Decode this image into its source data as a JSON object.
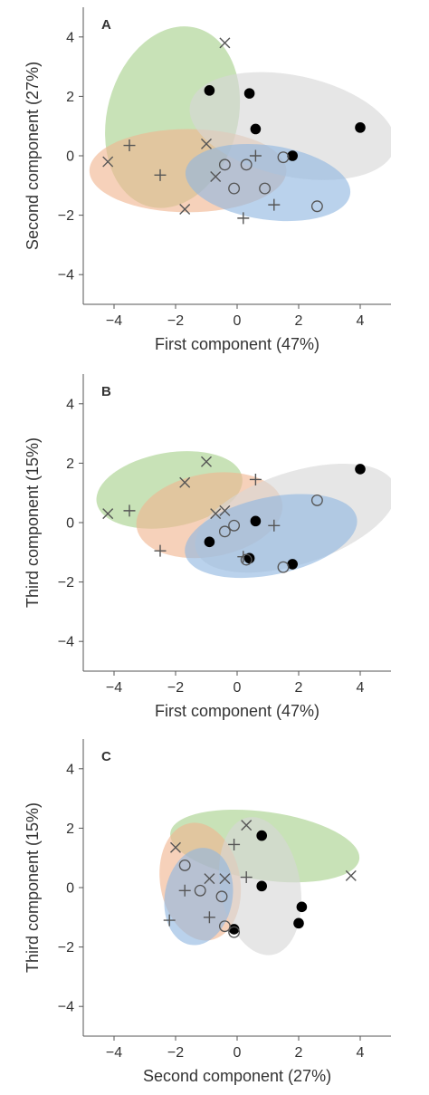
{
  "figure": {
    "colors": {
      "group_green": "#a7d08a",
      "group_orange": "#f0b58f",
      "group_gray": "#d6d6d6",
      "group_blue": "#8fb6e1",
      "axis": "#555555",
      "marker": "#555555",
      "filled_marker": "#000000"
    }
  },
  "chart_data": [
    {
      "type": "scatter",
      "panel_label": "A",
      "xlabel": "First component (47%)",
      "ylabel": "Second component (27%)",
      "xlim": [
        -5,
        5
      ],
      "ylim": [
        -5,
        5
      ],
      "xticks": [
        -4,
        -2,
        0,
        2,
        4
      ],
      "yticks": [
        -4,
        -2,
        0,
        2,
        4
      ],
      "groups": [
        {
          "marker": "x",
          "color": "#a7d08a",
          "ellipse": {
            "cx": -2.1,
            "cy": 1.3,
            "rx": 3.0,
            "ry": 2.2,
            "angle": 75
          },
          "points": [
            [
              -4.2,
              -0.2
            ],
            [
              -1.0,
              0.4
            ],
            [
              -1.7,
              -1.8
            ],
            [
              -0.7,
              -0.7
            ],
            [
              -0.4,
              3.8
            ]
          ]
        },
        {
          "marker": "+",
          "color": "#f0b58f",
          "ellipse": {
            "cx": -1.6,
            "cy": -0.5,
            "rx": 3.2,
            "ry": 1.4,
            "angle": 0
          },
          "points": [
            [
              -3.5,
              0.35
            ],
            [
              -2.5,
              -0.65
            ],
            [
              0.2,
              -2.1
            ],
            [
              1.2,
              -1.65
            ],
            [
              0.6,
              0.0
            ]
          ]
        },
        {
          "marker": "filled",
          "color": "#d6d6d6",
          "ellipse": {
            "cx": 1.8,
            "cy": 1.0,
            "rx": 3.4,
            "ry": 1.7,
            "angle": -12
          },
          "points": [
            [
              -0.9,
              2.2
            ],
            [
              0.4,
              2.1
            ],
            [
              0.6,
              0.9
            ],
            [
              1.8,
              0.0
            ],
            [
              4.0,
              0.95
            ]
          ]
        },
        {
          "marker": "o",
          "color": "#8fb6e1",
          "ellipse": {
            "cx": 1.0,
            "cy": -0.9,
            "rx": 2.7,
            "ry": 1.25,
            "angle": -8
          },
          "points": [
            [
              -0.4,
              -0.3
            ],
            [
              -0.1,
              -1.1
            ],
            [
              0.3,
              -0.3
            ],
            [
              0.9,
              -1.1
            ],
            [
              1.5,
              -0.05
            ],
            [
              2.6,
              -1.7
            ]
          ]
        }
      ]
    },
    {
      "type": "scatter",
      "panel_label": "B",
      "xlabel": "First component (47%)",
      "ylabel": "Third component (15%)",
      "xlim": [
        -5,
        5
      ],
      "ylim": [
        -5,
        5
      ],
      "xticks": [
        -4,
        -2,
        0,
        2,
        4
      ],
      "yticks": [
        -4,
        -2,
        0,
        2,
        4
      ],
      "groups": [
        {
          "marker": "x",
          "color": "#a7d08a",
          "ellipse": {
            "cx": -2.2,
            "cy": 1.1,
            "rx": 2.4,
            "ry": 1.25,
            "angle": 10
          },
          "points": [
            [
              -4.2,
              0.3
            ],
            [
              -1.0,
              2.05
            ],
            [
              -1.7,
              1.35
            ],
            [
              -0.7,
              0.3
            ],
            [
              -0.4,
              0.4
            ]
          ]
        },
        {
          "marker": "+",
          "color": "#f0b58f",
          "ellipse": {
            "cx": -0.9,
            "cy": 0.25,
            "rx": 2.4,
            "ry": 1.4,
            "angle": 10
          },
          "points": [
            [
              -3.5,
              0.4
            ],
            [
              -2.5,
              -0.95
            ],
            [
              0.2,
              -1.15
            ],
            [
              1.2,
              -0.1
            ],
            [
              0.6,
              1.45
            ]
          ]
        },
        {
          "marker": "filled",
          "color": "#d6d6d6",
          "ellipse": {
            "cx": 1.9,
            "cy": 0.15,
            "rx": 3.4,
            "ry": 1.55,
            "angle": 18
          },
          "points": [
            [
              -0.9,
              -0.65
            ],
            [
              0.4,
              -1.2
            ],
            [
              0.6,
              0.05
            ],
            [
              1.8,
              -1.4
            ],
            [
              4.0,
              1.8
            ]
          ]
        },
        {
          "marker": "o",
          "color": "#8fb6e1",
          "ellipse": {
            "cx": 1.1,
            "cy": -0.45,
            "rx": 2.85,
            "ry": 1.3,
            "angle": 12
          },
          "points": [
            [
              -0.4,
              -0.3
            ],
            [
              -0.1,
              -0.1
            ],
            [
              0.3,
              -1.25
            ],
            [
              1.5,
              -1.5
            ],
            [
              2.6,
              0.75
            ]
          ]
        }
      ]
    },
    {
      "type": "scatter",
      "panel_label": "C",
      "xlabel": "Second component (27%)",
      "ylabel": "Third component (15%)",
      "xlim": [
        -5,
        5
      ],
      "ylim": [
        -5,
        5
      ],
      "xticks": [
        -4,
        -2,
        0,
        2,
        4
      ],
      "yticks": [
        -4,
        -2,
        0,
        2,
        4
      ],
      "groups": [
        {
          "marker": "x",
          "color": "#a7d08a",
          "ellipse": {
            "cx": 0.9,
            "cy": 1.4,
            "rx": 3.1,
            "ry": 1.15,
            "angle": -8
          },
          "points": [
            [
              -2.0,
              1.35
            ],
            [
              -0.9,
              0.3
            ],
            [
              -0.4,
              0.3
            ],
            [
              0.3,
              2.1
            ],
            [
              3.7,
              0.4
            ]
          ]
        },
        {
          "marker": "+",
          "color": "#f0b58f",
          "ellipse": {
            "cx": -1.2,
            "cy": 0.2,
            "rx": 1.3,
            "ry": 2.0,
            "angle": 10
          },
          "points": [
            [
              -2.2,
              -1.1
            ],
            [
              -1.7,
              -0.1
            ],
            [
              -0.9,
              -1.0
            ],
            [
              -0.1,
              1.45
            ],
            [
              0.3,
              0.35
            ]
          ]
        },
        {
          "marker": "filled",
          "color": "#d6d6d6",
          "ellipse": {
            "cx": 0.75,
            "cy": 0.05,
            "rx": 1.3,
            "ry": 2.35,
            "angle": 10
          },
          "points": [
            [
              -0.1,
              -1.4
            ],
            [
              0.8,
              1.75
            ],
            [
              0.8,
              0.05
            ],
            [
              2.0,
              -1.2
            ],
            [
              2.1,
              -0.65
            ]
          ]
        },
        {
          "marker": "o",
          "color": "#8fb6e1",
          "ellipse": {
            "cx": -1.25,
            "cy": -0.3,
            "rx": 1.1,
            "ry": 1.65,
            "angle": -10
          },
          "points": [
            [
              -1.7,
              0.75
            ],
            [
              -1.2,
              -0.1
            ],
            [
              -0.5,
              -0.3
            ],
            [
              -0.4,
              -1.3
            ],
            [
              -0.1,
              -1.5
            ]
          ]
        }
      ]
    }
  ]
}
